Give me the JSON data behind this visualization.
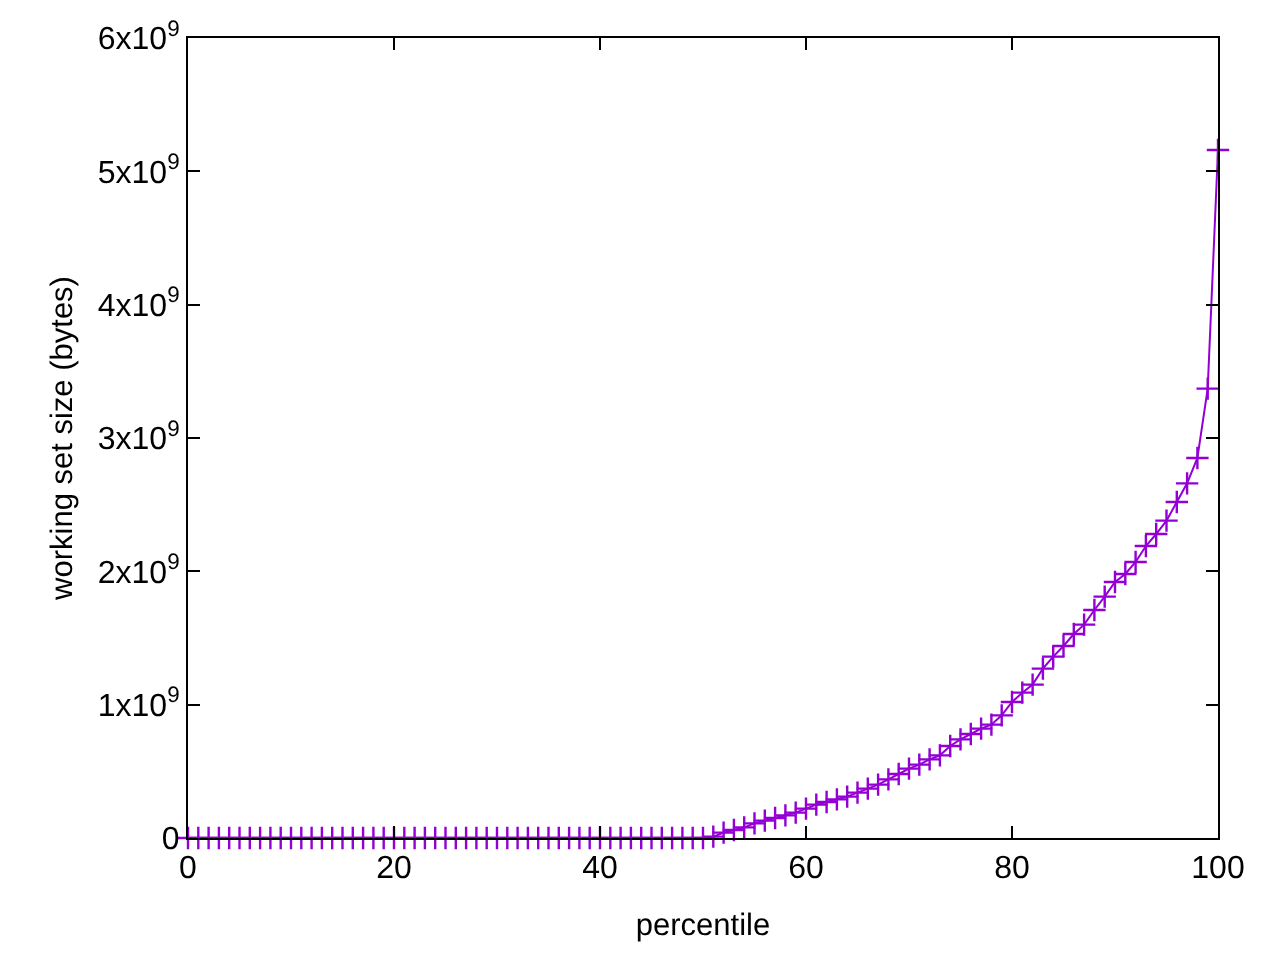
{
  "chart_data": {
    "type": "line",
    "xlabel": "percentile",
    "ylabel": "working set size (bytes)",
    "x": [
      0,
      1,
      2,
      3,
      4,
      5,
      6,
      7,
      8,
      9,
      10,
      11,
      12,
      13,
      14,
      15,
      16,
      17,
      18,
      19,
      20,
      21,
      22,
      23,
      24,
      25,
      26,
      27,
      28,
      29,
      30,
      31,
      32,
      33,
      34,
      35,
      36,
      37,
      38,
      39,
      40,
      41,
      42,
      43,
      44,
      45,
      46,
      47,
      48,
      49,
      50,
      51,
      52,
      53,
      54,
      55,
      56,
      57,
      58,
      59,
      60,
      61,
      62,
      63,
      64,
      65,
      66,
      67,
      68,
      69,
      70,
      71,
      72,
      73,
      74,
      75,
      76,
      77,
      78,
      79,
      80,
      81,
      82,
      83,
      84,
      85,
      86,
      87,
      88,
      89,
      90,
      91,
      92,
      93,
      94,
      95,
      96,
      97,
      98,
      99,
      100
    ],
    "series": [
      {
        "color": "#9400d3",
        "values": [
          0,
          0,
          0,
          0,
          0,
          0,
          0,
          0,
          0,
          0,
          0,
          0,
          0,
          0,
          0,
          0,
          0,
          0,
          0,
          0,
          0,
          0,
          0,
          0,
          0,
          0,
          0,
          0,
          0,
          0,
          0,
          0,
          0,
          0,
          0,
          0,
          0,
          0,
          0,
          0,
          0,
          0,
          0,
          0,
          0,
          0,
          0,
          0,
          0,
          0,
          0,
          10000000,
          40000000,
          60000000,
          80000000,
          110000000,
          130000000,
          150000000,
          170000000,
          190000000,
          220000000,
          250000000,
          270000000,
          290000000,
          310000000,
          340000000,
          370000000,
          400000000,
          440000000,
          480000000,
          520000000,
          550000000,
          590000000,
          620000000,
          690000000,
          740000000,
          780000000,
          820000000,
          850000000,
          920000000,
          1020000000,
          1090000000,
          1150000000,
          1270000000,
          1360000000,
          1440000000,
          1530000000,
          1600000000,
          1710000000,
          1810000000,
          1920000000,
          1980000000,
          2070000000,
          2190000000,
          2280000000,
          2380000000,
          2520000000,
          2660000000,
          2850000000,
          3370000000,
          5160000000
        ]
      }
    ],
    "xlim": [
      0,
      100
    ],
    "xticks": [
      0,
      20,
      40,
      60,
      80,
      100
    ],
    "ylim": [
      0,
      6000000000
    ],
    "yticks": [
      0,
      {
        "value": 1000000000,
        "label": "1x10$^{9}$"
      },
      {
        "value": 2000000000,
        "label": "2x10$^{9}$"
      },
      {
        "value": 3000000000,
        "label": "3x10$^{9}$"
      },
      {
        "value": 4000000000,
        "label": "4x10$^{9}$"
      },
      {
        "value": 5000000000,
        "label": "5x10$^{9}$"
      },
      {
        "value": 6000000000,
        "label": "6x10$^{9}$"
      }
    ],
    "marker": "cross",
    "line_style": "solid"
  }
}
